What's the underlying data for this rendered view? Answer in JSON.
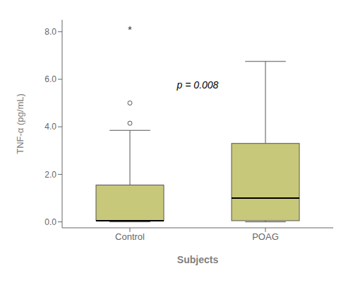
{
  "chart_data": {
    "type": "box",
    "categories": [
      "Control",
      "POAG"
    ],
    "boxes": [
      {
        "q1": 0.05,
        "median": 0.05,
        "q3": 1.55,
        "whisker_low": 0.0,
        "whisker_high": 3.85,
        "outliers": [
          4.15,
          5.0
        ]
      },
      {
        "q1": 0.05,
        "median": 1.0,
        "q3": 3.3,
        "whisker_low": 0.0,
        "whisker_high": 6.75,
        "outliers": []
      }
    ],
    "annotations": [
      {
        "text": "*",
        "category": "Control",
        "y": 8.1
      },
      {
        "text": "p = 0.008",
        "y": 5.6
      }
    ],
    "color": "#c8c87a",
    "xlabel": "Subjects",
    "ylabel": "TNF-α (pg/mL)",
    "ylim": [
      -0.25,
      8.5
    ],
    "yticks": [
      {
        "value": 0.0,
        "label": "0.0"
      },
      {
        "value": 2.0,
        "label": "2.0"
      },
      {
        "value": 4.0,
        "label": "4.0"
      },
      {
        "value": 6.0,
        "label": "6.0"
      },
      {
        "value": 8.0,
        "label": "8.0"
      }
    ],
    "grid": false
  }
}
